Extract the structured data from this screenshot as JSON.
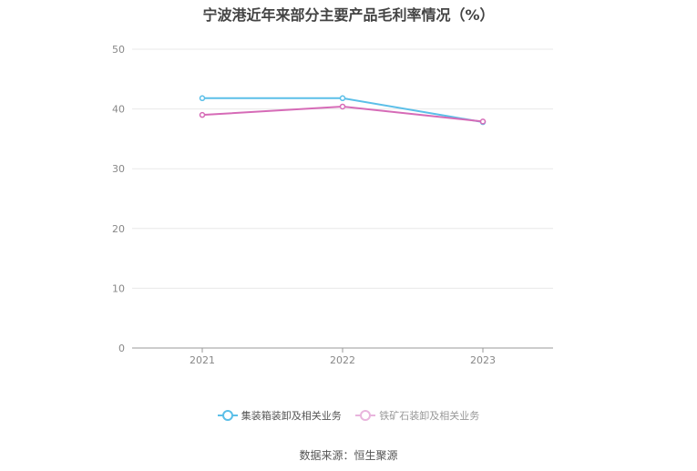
{
  "chart_data": {
    "type": "line",
    "title": "宁波港近年来部分主要产品毛利率情况（%）",
    "categories": [
      "2021",
      "2022",
      "2023"
    ],
    "series": [
      {
        "name": "集装箱装卸及相关业务",
        "values": [
          41.8,
          41.8,
          37.8
        ],
        "color": "#5bbfe8"
      },
      {
        "name": "铁矿石装卸及相关业务",
        "values": [
          39.0,
          40.4,
          37.9
        ],
        "color": "#d66bb7"
      }
    ],
    "yticks": [
      "0",
      "10",
      "20",
      "30",
      "40",
      "50"
    ],
    "ylim": [
      0,
      50
    ],
    "grid": true,
    "legend_position": "bottom",
    "source": "数据来源：恒生聚源"
  }
}
